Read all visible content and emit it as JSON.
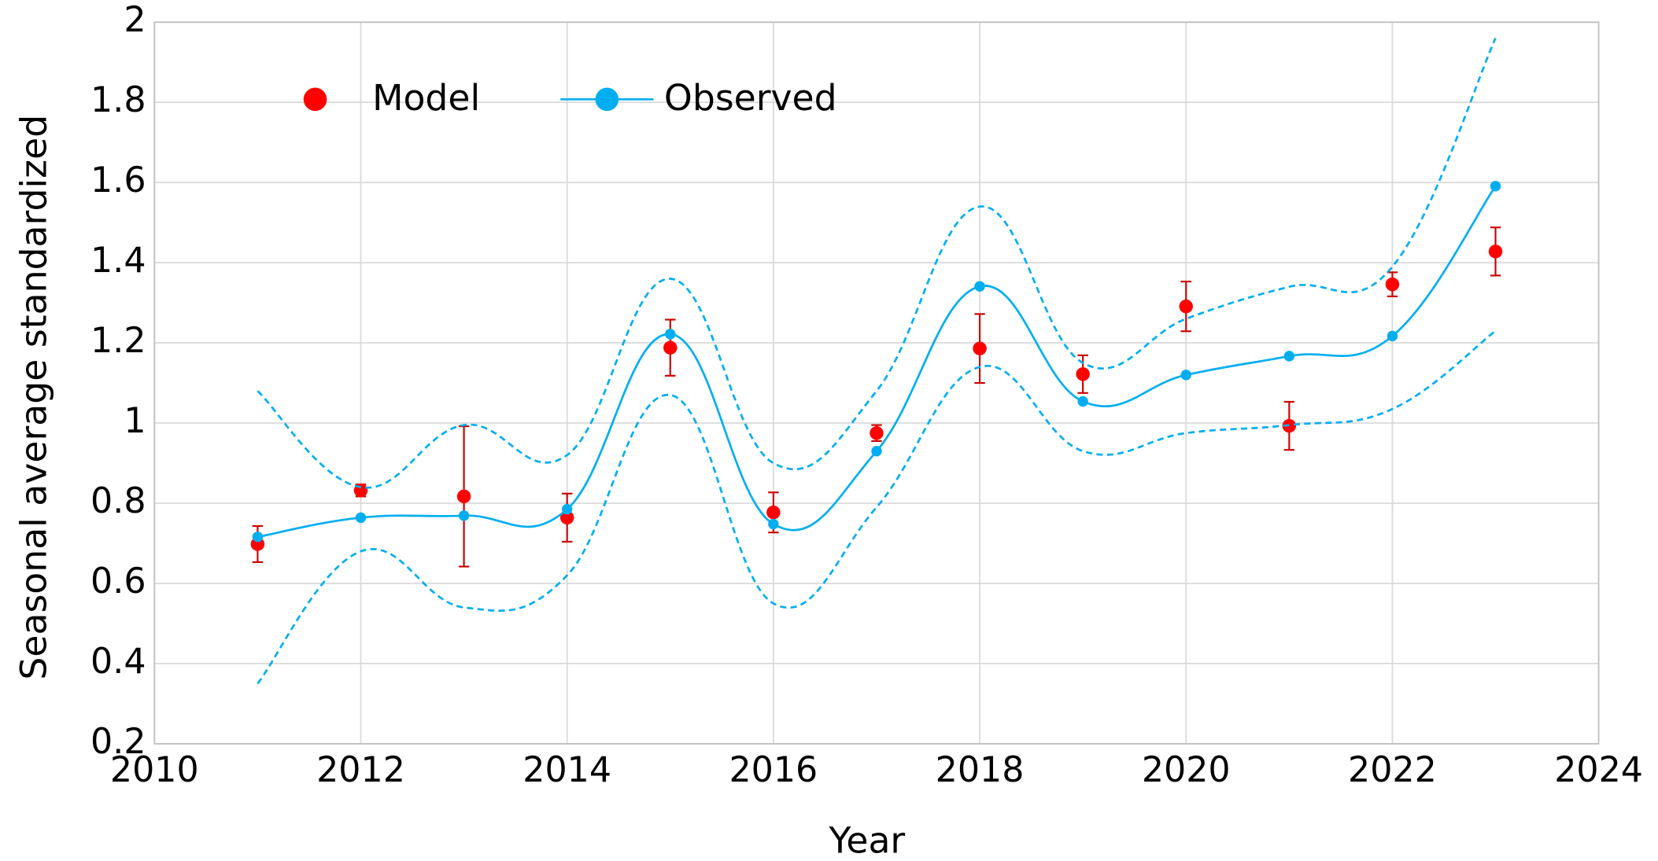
{
  "chart_data": {
    "type": "line",
    "xlabel": "Year",
    "ylabel": "Seasonal average standardized",
    "x": [
      2011,
      2012,
      2013,
      2014,
      2015,
      2016,
      2017,
      2018,
      2019,
      2020,
      2021,
      2022,
      2023
    ],
    "series": [
      {
        "name": "Model",
        "color": "#ff0000",
        "style": "points",
        "values": [
          0.698,
          0.832,
          0.817,
          0.764,
          1.188,
          0.777,
          0.975,
          1.186,
          1.122,
          1.291,
          0.993,
          1.346,
          1.428
        ],
        "errors": [
          0.045,
          0.015,
          0.175,
          0.06,
          0.07,
          0.05,
          0.02,
          0.086,
          0.047,
          0.062,
          0.06,
          0.03,
          0.06
        ],
        "error_color": "#cc0000"
      },
      {
        "name": "Observed",
        "color": "#00aeef",
        "style": "smooth",
        "values": [
          0.716,
          0.764,
          0.769,
          0.785,
          1.222,
          0.748,
          0.93,
          1.341,
          1.054,
          1.12,
          1.167,
          1.217,
          1.591
        ],
        "band": {
          "upper": [
            1.08,
            0.84,
            0.995,
            0.92,
            1.36,
            0.9,
            1.08,
            1.54,
            1.15,
            1.26,
            1.34,
            1.39,
            1.96
          ],
          "lower": [
            0.35,
            0.68,
            0.54,
            0.62,
            1.07,
            0.55,
            0.79,
            1.14,
            0.93,
            0.975,
            0.995,
            1.035,
            1.23
          ]
        }
      }
    ],
    "xlim": [
      2010,
      2024
    ],
    "xticks": [
      2010,
      2012,
      2014,
      2016,
      2018,
      2020,
      2022,
      2024
    ],
    "ylim": [
      0.2,
      2
    ],
    "yticks": [
      0.2,
      0.4,
      0.6,
      0.8,
      1,
      1.2,
      1.4,
      1.6,
      1.8,
      2
    ],
    "grid": true,
    "legend": "upper left"
  }
}
